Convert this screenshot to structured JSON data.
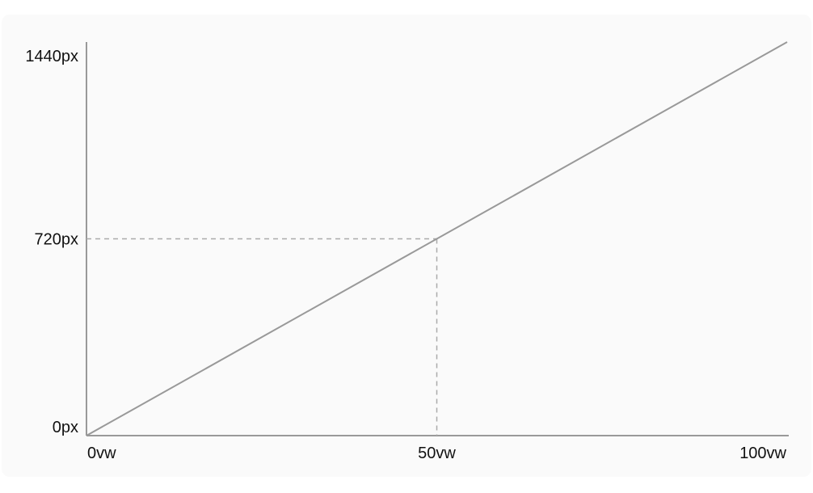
{
  "chart_data": {
    "type": "line",
    "title": "",
    "xlabel": "",
    "ylabel": "",
    "xlim": [
      0,
      100
    ],
    "ylim": [
      0,
      1440
    ],
    "x_ticks": [
      {
        "value": 0,
        "label": "0vw"
      },
      {
        "value": 50,
        "label": "50vw"
      },
      {
        "value": 100,
        "label": "100vw"
      }
    ],
    "y_ticks": [
      {
        "value": 0,
        "label": "0px"
      },
      {
        "value": 720,
        "label": "720px"
      },
      {
        "value": 1440,
        "label": "1440px"
      }
    ],
    "series": [
      {
        "x": [
          0,
          100
        ],
        "y": [
          0,
          1440
        ],
        "color": "#999999"
      }
    ],
    "reference_point": {
      "x": 50,
      "y": 720,
      "style": "dashed"
    },
    "grid": false,
    "colors": {
      "line": "#999999",
      "axis": "#999999",
      "guide": "#aaaaaa",
      "background": "#fafafa"
    }
  }
}
